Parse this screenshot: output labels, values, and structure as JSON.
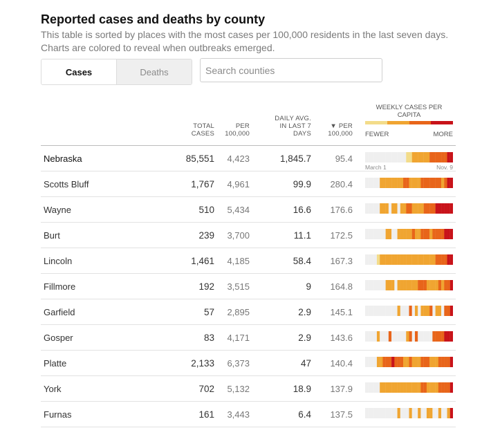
{
  "header": {
    "title": "Reported cases and deaths by county",
    "subtitle": "This table is sorted by places with the most cases per 100,000 residents in the last seven days. Charts are colored to reveal when outbreaks emerged."
  },
  "tabs": [
    {
      "label": "Cases",
      "active": true
    },
    {
      "label": "Deaths",
      "active": false
    }
  ],
  "search": {
    "placeholder": "Search counties",
    "value": ""
  },
  "columns": {
    "total": "TOTAL CASES",
    "per100k": "PER 100,000",
    "daily": "DAILY AVG. IN LAST 7 DAYS",
    "weekly": "▼ PER 100,000",
    "chart": "WEEKLY CASES PER CAPITA",
    "fewer": "FEWER",
    "more": "MORE"
  },
  "legend_colors": [
    "#f3dc8a",
    "#f0a531",
    "#e8651a",
    "#c8131a"
  ],
  "spark_labels": {
    "start": "March 1",
    "end": "Nov. 9"
  },
  "rows": [
    {
      "name": "Nebraska",
      "total": "85,551",
      "per100k": "4,423",
      "daily": "1,845.7",
      "weekly": "95.4"
    },
    {
      "name": "Scotts Bluff",
      "total": "1,767",
      "per100k": "4,961",
      "daily": "99.9",
      "weekly": "280.4"
    },
    {
      "name": "Wayne",
      "total": "510",
      "per100k": "5,434",
      "daily": "16.6",
      "weekly": "176.6"
    },
    {
      "name": "Burt",
      "total": "239",
      "per100k": "3,700",
      "daily": "11.1",
      "weekly": "172.5"
    },
    {
      "name": "Lincoln",
      "total": "1,461",
      "per100k": "4,185",
      "daily": "58.4",
      "weekly": "167.3"
    },
    {
      "name": "Fillmore",
      "total": "192",
      "per100k": "3,515",
      "daily": "9",
      "weekly": "164.8"
    },
    {
      "name": "Garfield",
      "total": "57",
      "per100k": "2,895",
      "daily": "2.9",
      "weekly": "145.1"
    },
    {
      "name": "Gosper",
      "total": "83",
      "per100k": "4,171",
      "daily": "2.9",
      "weekly": "143.6"
    },
    {
      "name": "Platte",
      "total": "2,133",
      "per100k": "6,373",
      "daily": "47",
      "weekly": "140.4"
    },
    {
      "name": "York",
      "total": "702",
      "per100k": "5,132",
      "daily": "18.9",
      "weekly": "137.9"
    },
    {
      "name": "Furnas",
      "total": "161",
      "per100k": "3,443",
      "daily": "6.4",
      "weekly": "137.5"
    }
  ],
  "sparklines": [
    "000000000000001122222233333344",
    "000002222222233222233333332344",
    "000002220220223322223333444444",
    "000000022002222232233323333444",
    "000012222222222222222222333344",
    "000000022202222222333222232334",
    "000000000002000302022230220334",
    "000020003000002303000003333444",
    "000022333433322322233322233334",
    "000002222222222222233222233334",
    "000000000002000200200220020024"
  ]
}
